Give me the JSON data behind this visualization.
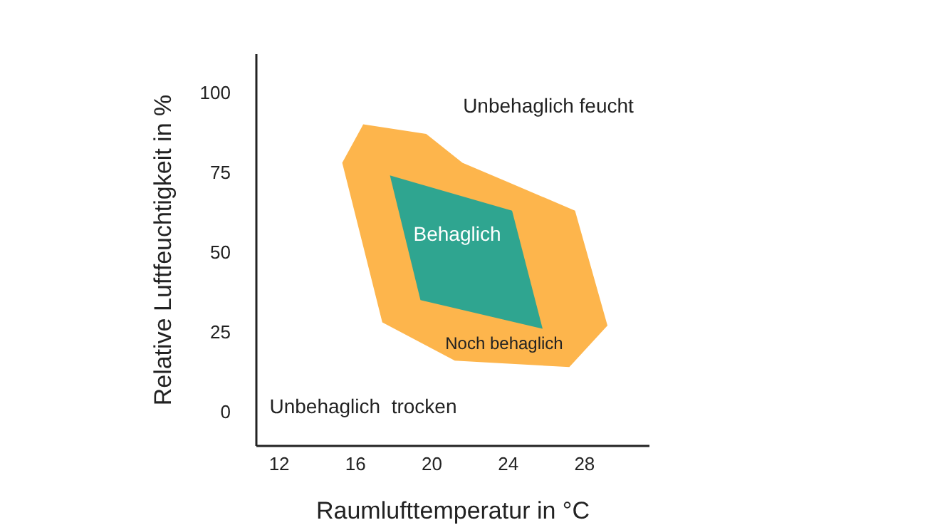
{
  "chart_data": {
    "type": "area",
    "xlabel": "Raumlufttemperatur in °C",
    "ylabel": "Relative Luftfeuchtigkeit in %",
    "xlim": [
      10.8,
      31.4
    ],
    "ylim": [
      -10.7,
      112
    ],
    "xticks": [
      12,
      16,
      20,
      24,
      28
    ],
    "yticks": [
      0,
      25,
      50,
      75,
      100
    ],
    "grid": false,
    "legend": false,
    "marker": "none",
    "series": [
      {
        "color": "#fdb54c",
        "x": [
          16.4,
          19.7,
          21.6,
          27.5,
          29.2,
          27.2,
          21.2,
          17.4,
          15.3
        ],
        "values": [
          90,
          87,
          78,
          63,
          27,
          14,
          16,
          28,
          78
        ]
      },
      {
        "color": "#2fa590",
        "x": [
          17.8,
          24.2,
          25.8,
          19.4
        ],
        "values": [
          74,
          63,
          26,
          35
        ]
      }
    ],
    "annotations": [
      "Unbehaglich feucht",
      "Behaglich",
      "Noch behaglich",
      "Unbehaglich  trocken"
    ]
  }
}
